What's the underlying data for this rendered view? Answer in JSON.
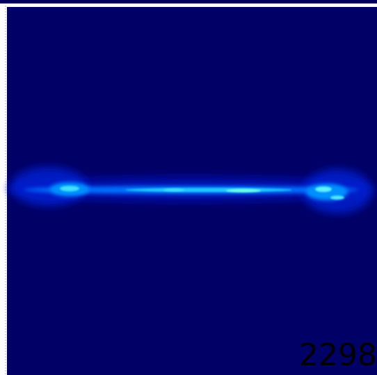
{
  "frame_label": "2298"
}
